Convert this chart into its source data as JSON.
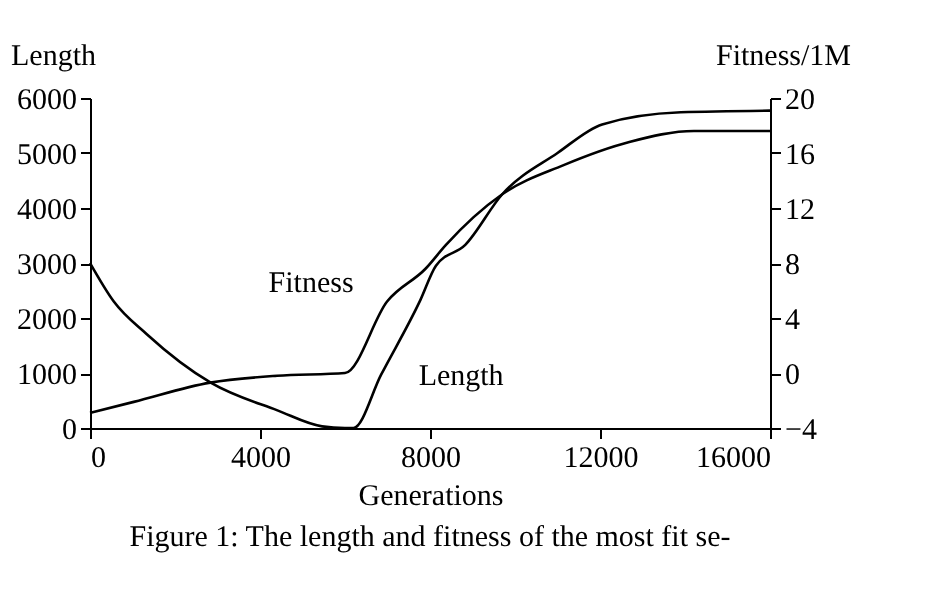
{
  "chart_data": {
    "type": "line",
    "xlabel": "Generations",
    "ylabel": "Length",
    "y2label": "Fitness/1M",
    "xlim": [
      0,
      16000
    ],
    "xticks": [
      0,
      4000,
      8000,
      12000,
      16000
    ],
    "ylim": [
      0,
      6000
    ],
    "yticks": [
      0,
      1000,
      2000,
      3000,
      4000,
      5000,
      6000
    ],
    "y2lim": [
      -4,
      20
    ],
    "y2ticks": [
      -4,
      0,
      4,
      8,
      12,
      16,
      20
    ],
    "series": [
      {
        "name": "Length",
        "color": "#000000",
        "x": [
          0,
          560,
          1330,
          2850,
          4410,
          5460,
          6000,
          6200,
          6850,
          7770,
          8140,
          8830,
          9700,
          11000,
          12050,
          13900,
          16000
        ],
        "values": [
          3000,
          2300,
          1710,
          820,
          320,
          30,
          0,
          0,
          970,
          2320,
          2950,
          3330,
          4250,
          5000,
          5520,
          5740,
          5770
        ]
      },
      {
        "name": "Fitness",
        "color": "#000000",
        "axis": "y2",
        "x": [
          0,
          1030,
          2830,
          4400,
          6000,
          6990,
          7900,
          8370,
          9700,
          11130,
          12690,
          14210,
          16000
        ],
        "values": [
          -2.9,
          -2.1,
          -0.7,
          -0.2,
          0,
          5.2,
          7.6,
          9.3,
          13.0,
          15.1,
          16.8,
          17.6,
          17.6
        ]
      }
    ],
    "grid": false,
    "legend": false,
    "marker": "none",
    "line_style": "solid",
    "annotations": [
      "Figure 1: The length and fitness of the most fit se-"
    ]
  }
}
